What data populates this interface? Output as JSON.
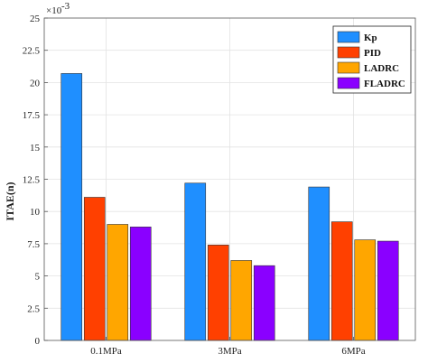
{
  "chart_data": {
    "type": "bar",
    "title": "",
    "xlabel": "",
    "ylabel": "ITAE(n)",
    "y_multiplier": "×10",
    "y_exponent": "-3",
    "categories": [
      "0.1MPa",
      "3MPa",
      "6MPa"
    ],
    "ylim": [
      0,
      25
    ],
    "yticks": [
      0,
      2.5,
      5,
      7.5,
      10,
      12.5,
      15,
      17.5,
      20,
      22.5,
      25
    ],
    "ytick_labels": [
      "0",
      "2.5",
      "5",
      "7.5",
      "10",
      "12.5",
      "15",
      "17.5",
      "20",
      "22.5",
      "25"
    ],
    "grid": true,
    "legend_position": "top-right",
    "series": [
      {
        "name": "Kp",
        "color": "#1f8fff",
        "values": [
          20.7,
          12.2,
          11.9
        ]
      },
      {
        "name": "PID",
        "color": "#ff4000",
        "values": [
          11.1,
          7.4,
          9.2
        ]
      },
      {
        "name": "LADRC",
        "color": "#ffa600",
        "values": [
          9.0,
          6.2,
          7.8
        ]
      },
      {
        "name": "FLADRC",
        "color": "#8a00ff",
        "values": [
          8.8,
          5.8,
          7.7
        ]
      }
    ]
  }
}
